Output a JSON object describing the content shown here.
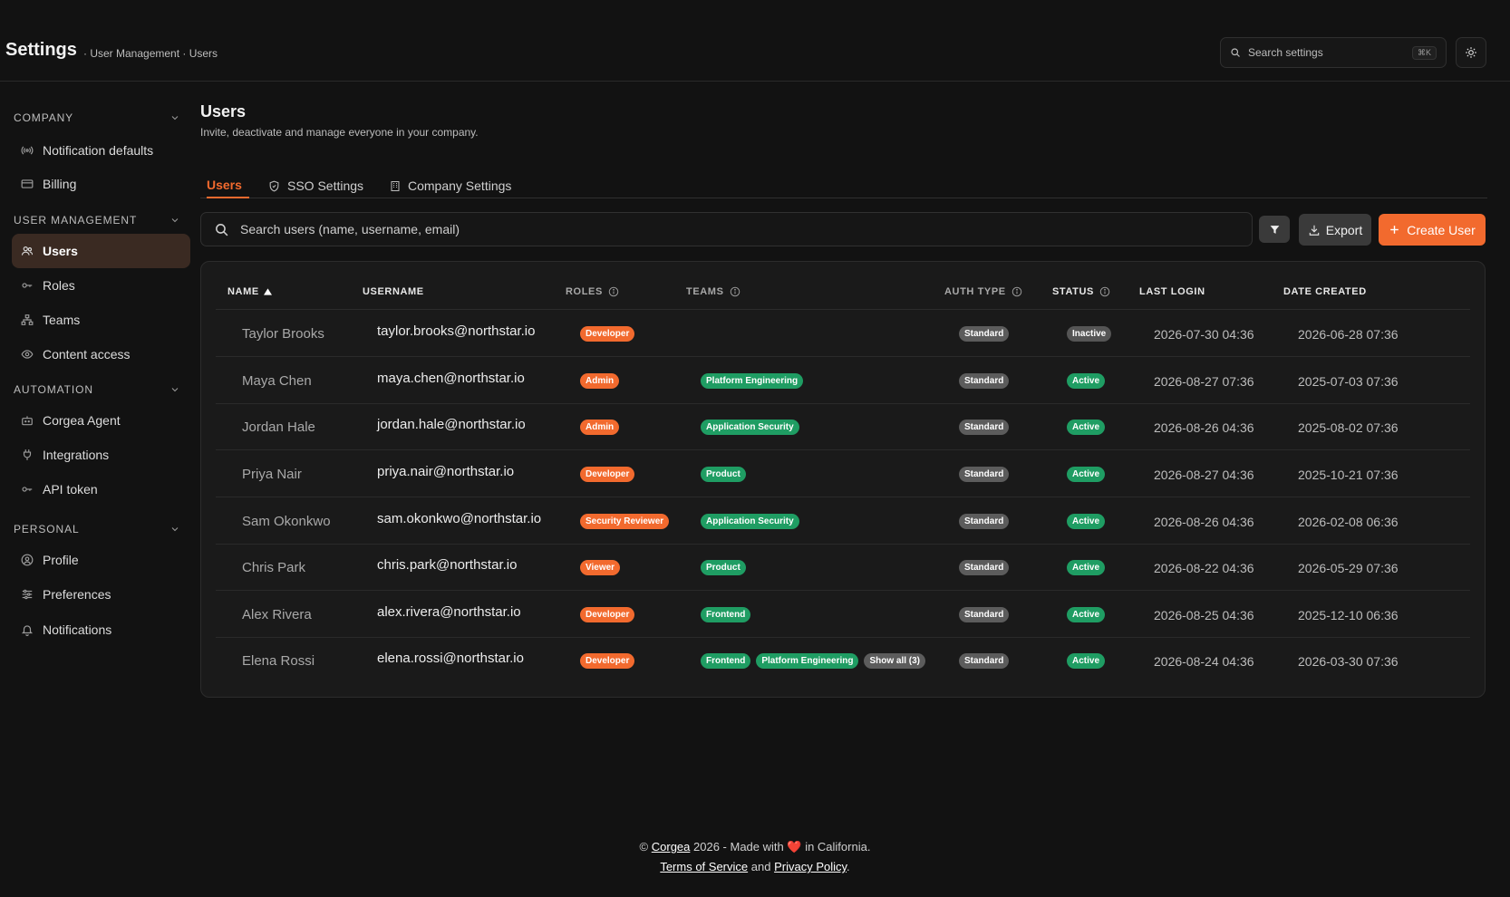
{
  "header": {
    "title": "Settings",
    "breadcrumb": "· User Management · Users",
    "search": {
      "placeholder": "Search settings",
      "shortcut": "⌘K"
    }
  },
  "sidebar": {
    "sections": [
      {
        "title": "COMPANY",
        "items": [
          {
            "label": "Notification defaults",
            "icon": "broadcast-icon"
          },
          {
            "label": "Billing",
            "icon": "credit-card-icon"
          }
        ]
      },
      {
        "title": "USER MANAGEMENT",
        "items": [
          {
            "label": "Users",
            "icon": "users-icon",
            "active": true
          },
          {
            "label": "Roles",
            "icon": "key-icon"
          },
          {
            "label": "Teams",
            "icon": "hierarchy-icon"
          },
          {
            "label": "Content access",
            "icon": "eye-icon"
          }
        ]
      },
      {
        "title": "AUTOMATION",
        "items": [
          {
            "label": "Corgea Agent",
            "icon": "bot-icon"
          },
          {
            "label": "Integrations",
            "icon": "plug-icon"
          },
          {
            "label": "API token",
            "icon": "key-icon"
          }
        ]
      },
      {
        "title": "PERSONAL",
        "items": [
          {
            "label": "Profile",
            "icon": "user-circle-icon"
          },
          {
            "label": "Preferences",
            "icon": "sliders-icon"
          },
          {
            "label": "Notifications",
            "icon": "bell-icon"
          }
        ]
      }
    ]
  },
  "main": {
    "title": "Users",
    "subtitle": "Invite, deactivate and manage everyone in your company.",
    "tabs": [
      {
        "label": "Users",
        "active": true
      },
      {
        "label": "SSO Settings",
        "icon": "shield-icon"
      },
      {
        "label": "Company Settings",
        "icon": "building-icon"
      }
    ],
    "search_placeholder": "Search users (name, username, email)",
    "export_label": "Export",
    "create_label": "Create User",
    "accent": "#f26a2e"
  },
  "table": {
    "columns": {
      "name": "NAME",
      "username": "USERNAME",
      "roles": "ROLES",
      "teams": "TEAMS",
      "auth_type": "AUTH TYPE",
      "status": "STATUS",
      "last_login": "LAST LOGIN",
      "date_created": "DATE CREATED"
    },
    "rows": [
      {
        "name": "Taylor Brooks",
        "username": "taylor.brooks@northstar.io",
        "roles": [
          "Developer"
        ],
        "teams": [],
        "auth_type": "Standard",
        "status": "Inactive",
        "last_login": "2026-07-30 04:36",
        "date_created": "2026-06-28 07:36"
      },
      {
        "name": "Maya Chen",
        "username": "maya.chen@northstar.io",
        "roles": [
          "Admin"
        ],
        "teams": [
          "Platform Engineering"
        ],
        "auth_type": "Standard",
        "status": "Active",
        "last_login": "2026-08-27 07:36",
        "date_created": "2025-07-03 07:36"
      },
      {
        "name": "Jordan Hale",
        "username": "jordan.hale@northstar.io",
        "roles": [
          "Admin"
        ],
        "teams": [
          "Application Security"
        ],
        "auth_type": "Standard",
        "status": "Active",
        "last_login": "2026-08-26 04:36",
        "date_created": "2025-08-02 07:36"
      },
      {
        "name": "Priya Nair",
        "username": "priya.nair@northstar.io",
        "roles": [
          "Developer"
        ],
        "teams": [
          "Product"
        ],
        "auth_type": "Standard",
        "status": "Active",
        "last_login": "2026-08-27 04:36",
        "date_created": "2025-10-21 07:36"
      },
      {
        "name": "Sam Okonkwo",
        "username": "sam.okonkwo@northstar.io",
        "roles": [
          "Security Reviewer"
        ],
        "teams": [
          "Application Security"
        ],
        "auth_type": "Standard",
        "status": "Active",
        "last_login": "2026-08-26 04:36",
        "date_created": "2026-02-08 06:36"
      },
      {
        "name": "Chris Park",
        "username": "chris.park@northstar.io",
        "roles": [
          "Viewer"
        ],
        "teams": [
          "Product"
        ],
        "auth_type": "Standard",
        "status": "Active",
        "last_login": "2026-08-22 04:36",
        "date_created": "2026-05-29 07:36"
      },
      {
        "name": "Alex Rivera",
        "username": "alex.rivera@northstar.io",
        "roles": [
          "Developer"
        ],
        "teams": [
          "Frontend"
        ],
        "auth_type": "Standard",
        "status": "Active",
        "last_login": "2026-08-25 04:36",
        "date_created": "2025-12-10 06:36"
      },
      {
        "name": "Elena Rossi",
        "username": "elena.rossi@northstar.io",
        "roles": [
          "Developer"
        ],
        "teams": [
          "Frontend",
          "Platform Engineering"
        ],
        "teams_more": "Show all (3)",
        "auth_type": "Standard",
        "status": "Active",
        "last_login": "2026-08-24 04:36",
        "date_created": "2026-03-30 07:36"
      }
    ]
  },
  "footer": {
    "copyright": "©",
    "brand": "Corgea",
    "made_with": "2026 - Made with",
    "heart": "❤️",
    "location": "in California.",
    "terms": "Terms of Service",
    "and": "and",
    "privacy": "Privacy Policy",
    "period": "."
  }
}
